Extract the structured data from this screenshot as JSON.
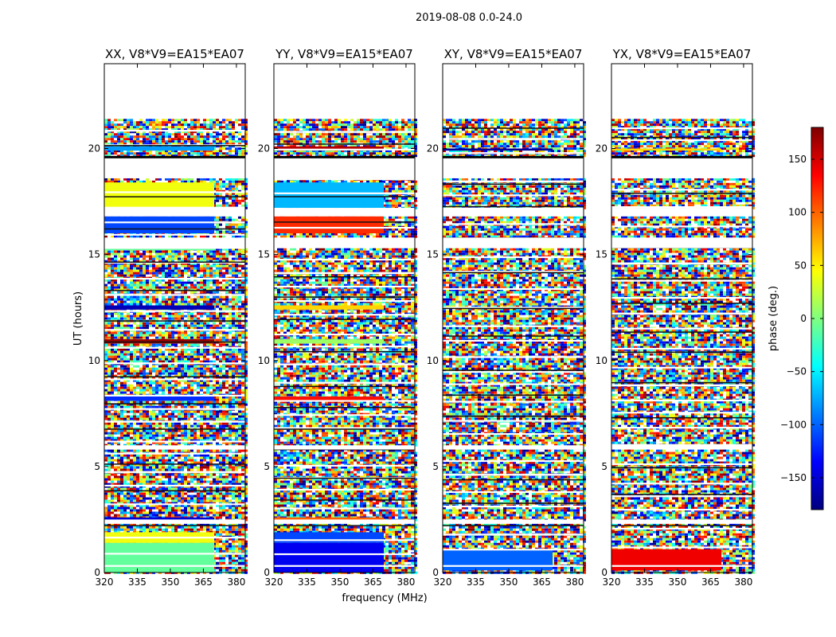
{
  "chart_data": {
    "type": "heatmap",
    "suptitle": "2019-08-08 0.0-24.0",
    "ylabel": "UT (hours)",
    "xlabel": "frequency (MHz)",
    "xlim": [
      320,
      384
    ],
    "ylim": [
      0,
      24
    ],
    "xticks": [
      320,
      335,
      350,
      365,
      380
    ],
    "yticks": [
      0,
      5,
      10,
      15,
      20
    ],
    "colorbar": {
      "label": "phase (deg.)",
      "range": [
        -180,
        180
      ],
      "ticks": [
        150,
        100,
        50,
        0,
        -50,
        -100,
        -150
      ],
      "tick_labels": [
        "150",
        "100",
        "50",
        "0",
        "−50",
        "−100",
        "−150"
      ],
      "colormap": "jet",
      "colors": [
        "#00007f",
        "#0000ff",
        "#007fff",
        "#00ffff",
        "#7fff7f",
        "#ffff00",
        "#ff7f00",
        "#ff0000",
        "#7f0000"
      ]
    },
    "data_rows_ut": [
      [
        0.0,
        2.3
      ],
      [
        2.5,
        5.8
      ],
      [
        6.0,
        15.3
      ],
      [
        15.8,
        16.8
      ],
      [
        17.2,
        18.6
      ],
      [
        19.6,
        21.4
      ]
    ],
    "flagged_ut": [
      [
        18.6,
        19.6
      ],
      [
        21.4,
        24.0
      ]
    ],
    "panels": [
      {
        "title": "XX, V8*V9=EA15*EA07",
        "bands": [
          {
            "ut": [
              0.0,
              1.4
            ],
            "phase": -10
          },
          {
            "ut": [
              1.4,
              1.9
            ],
            "phase": 40
          },
          {
            "ut": [
              2.4,
              2.6
            ],
            "phase": -150
          },
          {
            "ut": [
              8.1,
              8.3
            ],
            "phase": -120
          },
          {
            "ut": [
              10.8,
              11.0
            ],
            "phase": 170
          },
          {
            "ut": [
              12.4,
              12.6
            ],
            "phase": -160
          },
          {
            "ut": [
              15.2,
              15.3
            ],
            "phase": -10
          },
          {
            "ut": [
              16.0,
              16.8
            ],
            "phase": -110
          },
          {
            "ut": [
              17.2,
              18.4
            ],
            "phase": 40
          },
          {
            "ut": [
              19.9,
              20.1
            ],
            "phase": -80
          }
        ]
      },
      {
        "title": "YY, V8*V9=EA15*EA07",
        "bands": [
          {
            "ut": [
              0.0,
              1.4
            ],
            "phase": -140
          },
          {
            "ut": [
              1.4,
              1.9
            ],
            "phase": -110
          },
          {
            "ut": [
              2.4,
              2.6
            ],
            "phase": 100
          },
          {
            "ut": [
              8.1,
              8.3
            ],
            "phase": 130
          },
          {
            "ut": [
              10.8,
              11.0
            ],
            "phase": 10
          },
          {
            "ut": [
              12.4,
              12.6
            ],
            "phase": 60
          },
          {
            "ut": [
              16.0,
              16.8
            ],
            "phase": 120
          },
          {
            "ut": [
              17.2,
              18.4
            ],
            "phase": -70
          },
          {
            "ut": [
              19.9,
              20.1
            ],
            "phase": 160
          }
        ]
      },
      {
        "title": "XY, V8*V9=EA15*EA07",
        "bands": [
          {
            "ut": [
              0.1,
              1.1
            ],
            "phase": -100
          },
          {
            "ut": [
              19.9,
              20.0
            ],
            "phase": -170
          }
        ]
      },
      {
        "title": "YX, V8*V9=EA15*EA07",
        "bands": [
          {
            "ut": [
              0.1,
              1.1
            ],
            "phase": 140
          },
          {
            "ut": [
              19.9,
              20.0
            ],
            "phase": 60
          }
        ]
      }
    ]
  }
}
